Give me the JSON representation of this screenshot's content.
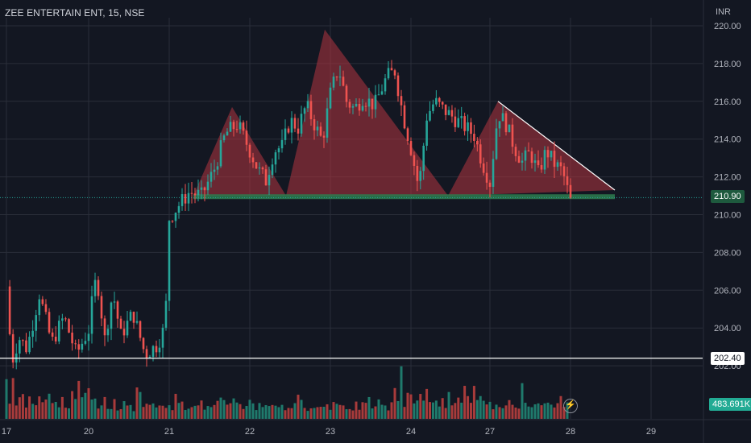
{
  "header": {
    "symbol_title": "ZEE ENTERTAIN ENT, 15, NSE",
    "currency": "INR"
  },
  "price_axis": {
    "current_price_label": "210.90",
    "level_label": "202.40",
    "volume_label": "483.691K"
  },
  "colors": {
    "background": "#131722",
    "up": "#26a69a",
    "down": "#ef5350",
    "pattern_fill": "#b2353f",
    "neckline": "#2e7d4f",
    "grid": "#2a2e39"
  },
  "icons": [
    "lightning-icon"
  ],
  "chart_data": {
    "type": "candlestick",
    "title": "ZEE ENTERTAIN ENT, 15, NSE",
    "ylabel": "INR",
    "ylim": [
      199.7,
      220.3
    ],
    "yticks": [
      "220.00",
      "218.00",
      "216.00",
      "214.00",
      "212.00",
      "210.00",
      "208.00",
      "206.00",
      "204.00",
      "202.00"
    ],
    "ytick_values": [
      220,
      218,
      216,
      214,
      212,
      210,
      208,
      206,
      204,
      202
    ],
    "xticks": [
      "17",
      "20",
      "21",
      "22",
      "23",
      "24",
      "27",
      "28",
      "29"
    ],
    "xtick_session_index": [
      0,
      1,
      2,
      3,
      4,
      5,
      6,
      7,
      8
    ],
    "grid": true,
    "horizontal_level": 202.4,
    "current_price": 210.9,
    "last_volume": "483.691K",
    "price_path": [
      [
        0.0,
        206.2
      ],
      [
        0.03,
        204.0
      ],
      [
        0.08,
        202.4
      ],
      [
        0.15,
        203.5
      ],
      [
        0.25,
        202.9
      ],
      [
        0.4,
        205.8
      ],
      [
        0.55,
        203.2
      ],
      [
        0.7,
        204.6
      ],
      [
        0.85,
        202.6
      ],
      [
        1.0,
        203.9
      ],
      [
        1.05,
        205.6
      ],
      [
        1.1,
        206.8
      ],
      [
        1.2,
        203.4
      ],
      [
        1.3,
        205.9
      ],
      [
        1.4,
        203.6
      ],
      [
        1.55,
        204.8
      ],
      [
        1.7,
        202.6
      ],
      [
        1.85,
        203.1
      ],
      [
        1.95,
        204.1
      ],
      [
        2.0,
        209.8
      ],
      [
        2.1,
        210.4
      ],
      [
        2.25,
        211.2
      ],
      [
        2.4,
        211.0
      ],
      [
        2.55,
        212.3
      ],
      [
        2.7,
        214.3
      ],
      [
        2.85,
        214.8
      ],
      [
        3.0,
        213.4
      ],
      [
        3.1,
        212.4
      ],
      [
        3.2,
        211.8
      ],
      [
        3.3,
        213.4
      ],
      [
        3.4,
        213.6
      ],
      [
        3.5,
        215.0
      ],
      [
        3.6,
        214.6
      ],
      [
        3.7,
        215.8
      ],
      [
        3.8,
        214.8
      ],
      [
        3.9,
        213.9
      ],
      [
        4.0,
        216.4
      ],
      [
        4.1,
        217.8
      ],
      [
        4.2,
        216.0
      ],
      [
        4.3,
        215.6
      ],
      [
        4.4,
        216.2
      ],
      [
        4.55,
        215.8
      ],
      [
        4.7,
        217.3
      ],
      [
        4.8,
        217.6
      ],
      [
        4.9,
        215.3
      ],
      [
        5.0,
        213.5
      ],
      [
        5.1,
        211.4
      ],
      [
        5.2,
        215.2
      ],
      [
        5.3,
        216.0
      ],
      [
        5.4,
        215.6
      ],
      [
        5.55,
        215.1
      ],
      [
        5.7,
        214.6
      ],
      [
        5.8,
        214.2
      ],
      [
        5.9,
        212.8
      ],
      [
        6.0,
        211.7
      ],
      [
        6.1,
        215.4
      ],
      [
        6.2,
        214.8
      ],
      [
        6.3,
        213.6
      ],
      [
        6.4,
        212.8
      ],
      [
        6.5,
        213.3
      ],
      [
        6.6,
        212.2
      ],
      [
        6.7,
        213.4
      ],
      [
        6.8,
        212.7
      ],
      [
        6.9,
        212.3
      ],
      [
        7.0,
        210.7
      ]
    ],
    "volume_relative": [
      0.6,
      0.35,
      0.75,
      0.3,
      0.45,
      0.55,
      0.25,
      0.4,
      0.35,
      0.3,
      0.5,
      0.28,
      0.34,
      0.42,
      0.22,
      0.3,
      0.26,
      0.38,
      0.2,
      0.24,
      0.45,
      0.3,
      0.55,
      0.35,
      0.4,
      0.48,
      0.28,
      0.32,
      0.26,
      0.22,
      0.3,
      0.24,
      0.2,
      0.28,
      0.18,
      0.22,
      0.26,
      0.2,
      0.24,
      0.18,
      0.7,
      0.4,
      0.3,
      0.25,
      0.28,
      0.22,
      0.2,
      0.26,
      0.3,
      0.24,
      0.28,
      0.22,
      0.35,
      0.3,
      0.25,
      0.2,
      0.24,
      0.28,
      0.3,
      0.22,
      0.26,
      0.2,
      0.24,
      0.18,
      0.22,
      0.28,
      0.3,
      0.26,
      0.2,
      0.24,
      0.4,
      0.32,
      0.25,
      0.22,
      0.26,
      0.3,
      0.24,
      0.2,
      0.28,
      0.22,
      0.3,
      0.26,
      0.24,
      0.2,
      0.22,
      0.26,
      0.18,
      0.24,
      0.2,
      0.22,
      0.34,
      0.28,
      0.24,
      0.2,
      0.26,
      0.22,
      0.18,
      0.24,
      0.2,
      0.26,
      0.22,
      0.3,
      0.26,
      0.24,
      0.28,
      0.2,
      0.22,
      0.18,
      0.24,
      0.2,
      0.26,
      0.22,
      0.3,
      0.24,
      0.2,
      0.28,
      0.22,
      0.26,
      0.18,
      0.24
    ],
    "pattern": {
      "type": "head-and-shoulders",
      "points": [
        [
          2.3,
          211.0
        ],
        [
          2.78,
          215.7
        ],
        [
          3.45,
          211.0
        ],
        [
          3.93,
          219.8
        ],
        [
          5.47,
          211.0
        ],
        [
          6.1,
          216.0
        ],
        [
          7.55,
          211.3
        ]
      ],
      "neckline": [
        [
          2.3,
          210.95
        ],
        [
          7.55,
          210.95
        ]
      ],
      "right_trend": [
        [
          6.1,
          216.0
        ],
        [
          7.55,
          211.3
        ]
      ]
    }
  }
}
